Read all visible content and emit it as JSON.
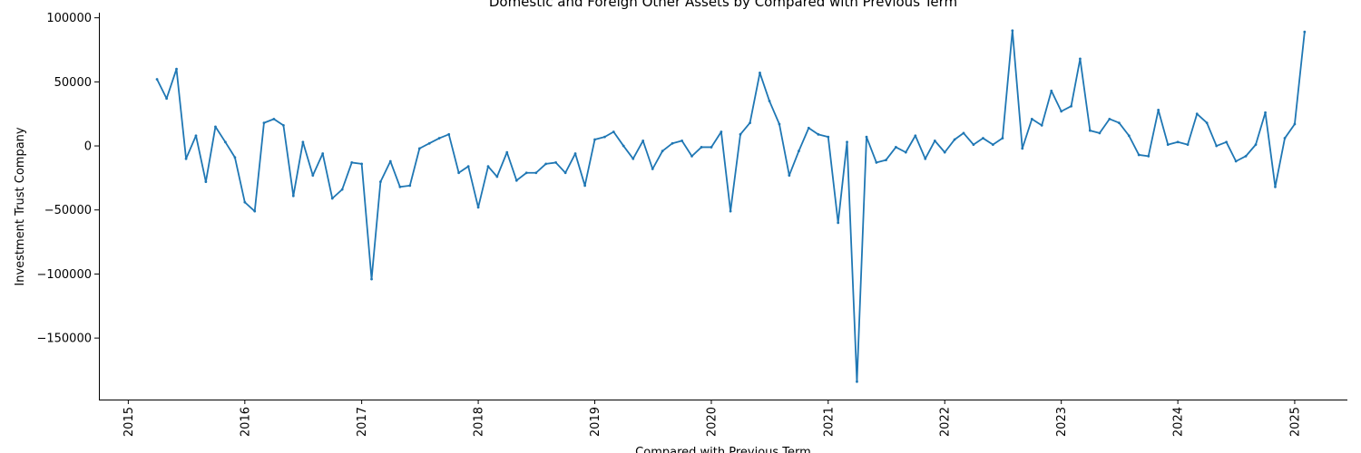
{
  "chart_data": {
    "type": "line",
    "title": "Domestic and Foreign Other Assets by Compared with Previous Term",
    "xlabel": "Compared with Previous Term",
    "ylabel": "Investment Trust Company",
    "xlim": [
      "2014-10-01",
      "2025-06-15"
    ],
    "ylim": [
      -198000,
      104000
    ],
    "x_ticks": [
      "2015",
      "2016",
      "2017",
      "2018",
      "2019",
      "2020",
      "2021",
      "2022",
      "2023",
      "2024",
      "2025"
    ],
    "y_ticks": [
      -150000,
      -100000,
      -50000,
      0,
      50000,
      100000
    ],
    "y_tick_labels": [
      "−150000",
      "−100000",
      "−50000",
      "0",
      "50000",
      "100000"
    ],
    "grid": false,
    "color": "#1f77b4",
    "series": [
      {
        "x": [
          "2015-04",
          "2015-05",
          "2015-06",
          "2015-07",
          "2015-08",
          "2015-09",
          "2015-10",
          "2015-11",
          "2015-12",
          "2016-01",
          "2016-02",
          "2016-03",
          "2016-04",
          "2016-05",
          "2016-06",
          "2016-07",
          "2016-08",
          "2016-09",
          "2016-10",
          "2016-11",
          "2016-12",
          "2017-01",
          "2017-02",
          "2017-03",
          "2017-04",
          "2017-05",
          "2017-06",
          "2017-07",
          "2017-08",
          "2017-09",
          "2017-10",
          "2017-11",
          "2017-12",
          "2018-01",
          "2018-02",
          "2018-03",
          "2018-04",
          "2018-05",
          "2018-06",
          "2018-07",
          "2018-08",
          "2018-09",
          "2018-10",
          "2018-11",
          "2018-12",
          "2019-01",
          "2019-02",
          "2019-03",
          "2019-04",
          "2019-05",
          "2019-06",
          "2019-07",
          "2019-08",
          "2019-09",
          "2019-10",
          "2019-11",
          "2019-12",
          "2020-01",
          "2020-02",
          "2020-03",
          "2020-04",
          "2020-05",
          "2020-06",
          "2020-07",
          "2020-08",
          "2020-09",
          "2020-10",
          "2020-11",
          "2020-12",
          "2021-01",
          "2021-02",
          "2021-03",
          "2021-04",
          "2021-05",
          "2021-06",
          "2021-07",
          "2021-08",
          "2021-09",
          "2021-10",
          "2021-11",
          "2021-12",
          "2022-01",
          "2022-02",
          "2022-03",
          "2022-04",
          "2022-05",
          "2022-06",
          "2022-07",
          "2022-08",
          "2022-09",
          "2022-10",
          "2022-11",
          "2022-12",
          "2023-01",
          "2023-02",
          "2023-03",
          "2023-04",
          "2023-05",
          "2023-06",
          "2023-07",
          "2023-08",
          "2023-09",
          "2023-10",
          "2023-11",
          "2023-12",
          "2024-01",
          "2024-02",
          "2024-03",
          "2024-04",
          "2024-05",
          "2024-06",
          "2024-07",
          "2024-08",
          "2024-09",
          "2024-10",
          "2024-11",
          "2024-12",
          "2025-01",
          "2025-02"
        ],
        "y": [
          52000,
          37000,
          60000,
          -10000,
          8000,
          -28000,
          15000,
          3000,
          -9000,
          -44000,
          -51000,
          18000,
          21000,
          16000,
          -39000,
          3000,
          -23000,
          -6000,
          -41000,
          -34000,
          -13000,
          -14000,
          -104000,
          -28000,
          -12000,
          -32000,
          -31000,
          -2000,
          2000,
          6000,
          9000,
          -21000,
          -16000,
          -48000,
          -16000,
          -24000,
          -5000,
          -27000,
          -21000,
          -21000,
          -14000,
          -13000,
          -21000,
          -6000,
          -31000,
          5000,
          7000,
          11000,
          0,
          -10000,
          4000,
          -18000,
          -4000,
          2000,
          4000,
          -8000,
          -1000,
          -1000,
          11000,
          -51000,
          9000,
          18000,
          57000,
          35000,
          17000,
          -23000,
          -4000,
          14000,
          9000,
          7000,
          -60000,
          3000,
          -184000,
          7000,
          -13000,
          -11000,
          -1000,
          -5000,
          8000,
          -10000,
          4000,
          -5000,
          5000,
          10000,
          1000,
          6000,
          1000,
          6000,
          90000,
          -2000,
          21000,
          16000,
          43000,
          27000,
          31000,
          68000,
          12000,
          10000,
          21000,
          18000,
          8000,
          -7000,
          -8000,
          28000,
          1000,
          3000,
          1000,
          25000,
          18000,
          0,
          3000,
          -12000,
          -8000,
          1000,
          26000,
          -32000,
          6000,
          17000,
          89000
        ]
      }
    ]
  }
}
